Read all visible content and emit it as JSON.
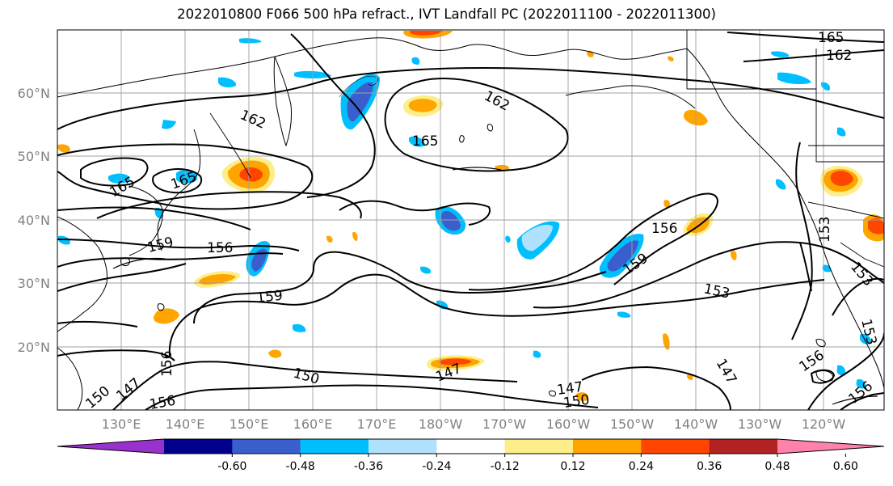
{
  "title": "2022010800 F066 500 hPa refract., IVT Landfall PC (2022011100 - 2022011300)",
  "lat_labels": [
    "60°N",
    "50°N",
    "40°N",
    "30°N",
    "20°N"
  ],
  "lat_values": [
    60,
    50,
    40,
    30,
    20
  ],
  "lon_labels": [
    "130°E",
    "140°E",
    "150°E",
    "160°E",
    "170°E",
    "180°W",
    "170°W",
    "160°W",
    "150°W",
    "140°W",
    "130°W",
    "120°W"
  ],
  "contour_labels": [
    "165",
    "162",
    "162",
    "162",
    "165",
    "165",
    "165",
    "159",
    "156",
    "159",
    "156",
    "153",
    "159",
    "153",
    "150",
    "147",
    "147",
    "150",
    "147",
    "156",
    "153",
    "156",
    "153",
    "147",
    "150",
    "156",
    "156"
  ],
  "colorbar": {
    "colors": [
      "#9932cc",
      "#00008b",
      "#3a5fcd",
      "#00bfff",
      "#b0e2ff",
      "#ffffff",
      "#fdee8a",
      "#ffa500",
      "#ff4500",
      "#b22222",
      "#ff82ab"
    ],
    "tick_labels": [
      "-0.60",
      "-0.48",
      "-0.36",
      "-0.24",
      "-0.12",
      "0.12",
      "0.24",
      "0.36",
      "0.48",
      "0.60"
    ]
  }
}
